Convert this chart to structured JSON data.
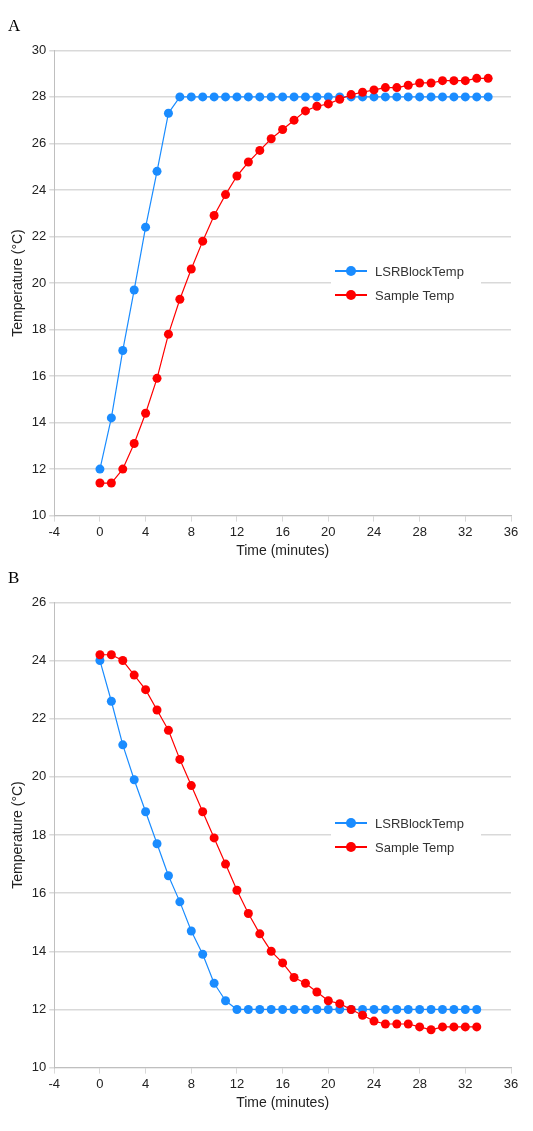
{
  "chart_data": [
    {
      "type": "line",
      "title": "A",
      "xlabel": "Time (minutes)",
      "ylabel": "Temperature (°C)",
      "xlim": [
        -4,
        36
      ],
      "xticks": [
        -4,
        0,
        4,
        8,
        12,
        16,
        20,
        24,
        28,
        32,
        36
      ],
      "ylim": [
        10,
        30
      ],
      "yticks": [
        10,
        12,
        14,
        16,
        18,
        20,
        22,
        24,
        26,
        28,
        30
      ],
      "grid": "y",
      "legend": "right",
      "marker": "circle",
      "line_style": "solid",
      "x": [
        0,
        1,
        2,
        3,
        4,
        5,
        6,
        7,
        8,
        9,
        10,
        11,
        12,
        13,
        14,
        15,
        16,
        17,
        18,
        19,
        20,
        21,
        22,
        23,
        24,
        25,
        26,
        27,
        28,
        29,
        30,
        31,
        32,
        33,
        34
      ],
      "series": [
        {
          "name": "LSRBlockTemp",
          "color": "#1a8cff",
          "values": [
            12,
            14.2,
            17.1,
            19.7,
            22.4,
            24.8,
            27.3,
            28,
            28,
            28,
            28,
            28,
            28,
            28,
            28,
            28,
            28,
            28,
            28,
            28,
            28,
            28,
            28,
            28,
            28,
            28,
            28,
            28,
            28,
            28,
            28,
            28,
            28,
            28,
            28
          ]
        },
        {
          "name": "Sample Temp",
          "color": "#ff0000",
          "values": [
            11.4,
            11.4,
            12,
            13.1,
            14.4,
            15.9,
            17.8,
            19.3,
            20.6,
            21.8,
            22.9,
            23.8,
            24.6,
            25.2,
            25.7,
            26.2,
            26.6,
            27.0,
            27.4,
            27.6,
            27.7,
            27.9,
            28.1,
            28.2,
            28.3,
            28.4,
            28.4,
            28.5,
            28.6,
            28.6,
            28.7,
            28.7,
            28.7,
            28.8,
            28.8
          ]
        }
      ]
    },
    {
      "type": "line",
      "title": "B",
      "xlabel": "Time (minutes)",
      "ylabel": "Temperature (°C)",
      "xlim": [
        -4,
        36
      ],
      "xticks": [
        -4,
        0,
        4,
        8,
        12,
        16,
        20,
        24,
        28,
        32,
        36
      ],
      "ylim": [
        10,
        26
      ],
      "yticks": [
        10,
        12,
        14,
        16,
        18,
        20,
        22,
        24,
        26
      ],
      "grid": "y",
      "legend": "right",
      "marker": "circle",
      "line_style": "solid",
      "x": [
        0,
        1,
        2,
        3,
        4,
        5,
        6,
        7,
        8,
        9,
        10,
        11,
        12,
        13,
        14,
        15,
        16,
        17,
        18,
        19,
        20,
        21,
        22,
        23,
        24,
        25,
        26,
        27,
        28,
        29,
        30,
        31,
        32,
        33
      ],
      "series": [
        {
          "name": "LSRBlockTemp",
          "color": "#1a8cff",
          "values": [
            24,
            22.6,
            21.1,
            19.9,
            18.8,
            17.7,
            16.6,
            15.7,
            14.7,
            13.9,
            12.9,
            12.3,
            12,
            12,
            12,
            12,
            12,
            12,
            12,
            12,
            12,
            12,
            12,
            12,
            12,
            12,
            12,
            12,
            12,
            12,
            12,
            12,
            12,
            12
          ]
        },
        {
          "name": "Sample Temp",
          "color": "#ff0000",
          "values": [
            24.2,
            24.2,
            24.0,
            23.5,
            23.0,
            22.3,
            21.6,
            20.6,
            19.7,
            18.8,
            17.9,
            17.0,
            16.1,
            15.3,
            14.6,
            14.0,
            13.6,
            13.1,
            12.9,
            12.6,
            12.3,
            12.2,
            12.0,
            11.8,
            11.6,
            11.5,
            11.5,
            11.5,
            11.4,
            11.3,
            11.4,
            11.4,
            11.4,
            11.4
          ]
        }
      ]
    }
  ]
}
